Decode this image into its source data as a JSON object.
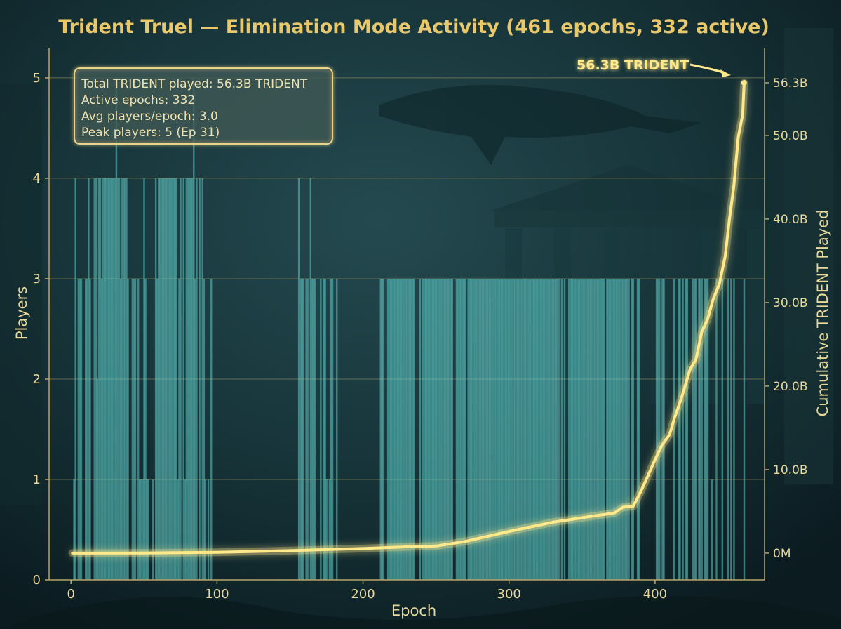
{
  "chart_data": {
    "type": "bar",
    "title": "Trident Truel — Elimination Mode Activity (461 epochs, 332 active)",
    "xlabel": "Epoch",
    "ylabel": "Players",
    "y2label": "Cumulative TRIDENT Played",
    "xlim": [
      -15,
      475
    ],
    "ylim": [
      0,
      5.3
    ],
    "y2lim": [
      -3.2,
      60.5
    ],
    "xticks": [
      0,
      100,
      200,
      300,
      400
    ],
    "yticks": [
      0,
      1,
      2,
      3,
      4,
      5
    ],
    "y2ticks": [
      {
        "value": 0,
        "label": "0M"
      },
      {
        "value": 10,
        "label": "10.0B"
      },
      {
        "value": 20,
        "label": "20.0B"
      },
      {
        "value": 30,
        "label": "30.0B"
      },
      {
        "value": 40,
        "label": "40.0B"
      },
      {
        "value": 50,
        "label": "50.0B"
      },
      {
        "value": 56.3,
        "label": "56.3B"
      }
    ],
    "grid": true,
    "colors": {
      "bar": "#5fc7c2",
      "line": "#ffe98a",
      "text": "#e9d89a",
      "title": "#e8c86a",
      "axis": "#b8a46a",
      "grid": "#a89a60"
    },
    "bars": {
      "x_start": 1,
      "x_end": 461,
      "default_players": 3,
      "four_player_epochs": [
        3,
        12,
        16,
        17,
        19,
        20,
        22,
        23,
        24,
        25,
        26,
        27,
        28,
        29,
        30,
        32,
        33,
        35,
        36,
        37,
        38,
        50,
        58,
        60,
        61,
        62,
        63,
        64,
        65,
        66,
        67,
        68,
        69,
        70,
        71,
        72,
        75,
        77,
        79,
        80,
        81,
        82,
        83,
        86,
        88,
        90,
        156,
        164
      ],
      "five_player_epochs": [
        31,
        84
      ],
      "two_player_epochs": [
        18,
        26,
        27,
        29
      ],
      "one_player_epochs": [
        2,
        3,
        47,
        48,
        49,
        52,
        53,
        56,
        58,
        66,
        70,
        73,
        77,
        78,
        92,
        94,
        175,
        177,
        439
      ],
      "inactive_epochs": [
        1,
        4,
        8,
        9,
        14,
        15,
        40,
        41,
        45,
        54,
        55,
        57,
        76,
        87,
        89,
        93,
        95,
        97,
        98,
        99,
        100,
        101,
        102,
        103,
        104,
        105,
        106,
        107,
        108,
        109,
        110,
        111,
        112,
        113,
        114,
        115,
        116,
        117,
        118,
        119,
        120,
        121,
        122,
        123,
        124,
        125,
        126,
        127,
        128,
        129,
        130,
        131,
        132,
        133,
        134,
        135,
        136,
        137,
        138,
        139,
        140,
        141,
        142,
        143,
        144,
        145,
        146,
        147,
        148,
        149,
        150,
        151,
        152,
        153,
        154,
        155,
        160,
        163,
        168,
        169,
        170,
        172,
        176,
        180,
        181,
        183,
        184,
        185,
        186,
        187,
        188,
        189,
        190,
        191,
        192,
        193,
        194,
        195,
        196,
        197,
        198,
        199,
        200,
        201,
        202,
        203,
        204,
        205,
        206,
        207,
        208,
        209,
        210,
        211,
        215,
        216,
        236,
        237,
        238,
        240,
        262,
        263,
        271,
        335,
        337,
        339,
        340,
        366,
        383,
        386,
        387,
        390,
        391,
        392,
        393,
        394,
        395,
        396,
        397,
        398,
        399,
        400,
        404,
        407,
        408,
        409,
        410,
        411,
        412,
        414,
        415,
        418,
        420,
        423,
        424,
        425,
        429,
        433,
        437,
        438,
        440,
        441,
        443,
        444,
        445,
        447,
        448,
        449,
        451,
        453,
        455,
        456,
        457,
        458,
        459,
        460
      ]
    },
    "series": [
      {
        "name": "Cumulative TRIDENT Played",
        "points": [
          [
            1,
            0
          ],
          [
            50,
            0.02
          ],
          [
            100,
            0.1
          ],
          [
            150,
            0.3
          ],
          [
            200,
            0.55
          ],
          [
            230,
            0.75
          ],
          [
            250,
            0.85
          ],
          [
            270,
            1.4
          ],
          [
            300,
            2.6
          ],
          [
            330,
            3.7
          ],
          [
            360,
            4.5
          ],
          [
            372,
            4.8
          ],
          [
            378,
            5.5
          ],
          [
            385,
            5.6
          ],
          [
            390,
            7.3
          ],
          [
            395,
            9.2
          ],
          [
            400,
            11.2
          ],
          [
            405,
            13.0
          ],
          [
            410,
            14.2
          ],
          [
            413,
            16.0
          ],
          [
            418,
            18.5
          ],
          [
            424,
            22.0
          ],
          [
            428,
            23.2
          ],
          [
            432,
            26.5
          ],
          [
            436,
            28.0
          ],
          [
            440,
            30.5
          ],
          [
            444,
            32.2
          ],
          [
            448,
            35.5
          ],
          [
            451,
            40.0
          ],
          [
            454,
            44.0
          ],
          [
            457,
            49.8
          ],
          [
            460,
            52.5
          ],
          [
            461,
            56.3
          ]
        ]
      }
    ],
    "annotation": {
      "text": "56.3B TRIDENT",
      "x": 461,
      "y": 56.3
    },
    "stats_box": [
      "Total TRIDENT played: 56.3B TRIDENT",
      "Active epochs: 332",
      "Avg players/epoch: 3.0",
      "Peak players: 5 (Ep 31)"
    ]
  }
}
